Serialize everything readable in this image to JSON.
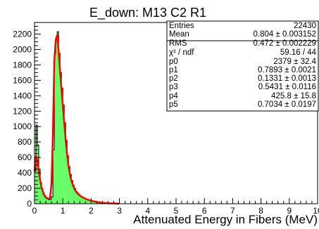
{
  "chart_data": {
    "type": "histogram",
    "title": "E_down: M13 C2 R1",
    "xlabel": "Attenuated Energy in Fibers (MeV)",
    "ylabel": "",
    "xlim": [
      0,
      10
    ],
    "ylim": [
      0,
      2350
    ],
    "x_ticks": [
      0,
      1,
      2,
      3,
      4,
      5,
      6,
      7,
      8,
      9,
      10
    ],
    "y_ticks": [
      0,
      200,
      400,
      600,
      800,
      1000,
      1200,
      1400,
      1600,
      1800,
      2000,
      2200
    ],
    "grid": false,
    "fill_color": "#66ff66",
    "line_color": "#000000",
    "fit_color": "#ff0000",
    "bins": {
      "x": [
        0.0,
        0.05,
        0.1,
        0.15,
        0.2,
        0.25,
        0.3,
        0.35,
        0.4,
        0.45,
        0.5,
        0.55,
        0.6,
        0.65,
        0.7,
        0.75,
        0.8,
        0.85,
        0.9,
        0.95,
        1.0,
        1.05,
        1.1,
        1.15,
        1.2,
        1.25,
        1.3,
        1.35,
        1.4,
        1.45,
        1.5,
        1.55,
        1.6,
        1.65,
        1.7,
        1.75,
        1.8,
        1.85,
        1.9,
        1.95,
        2.0,
        2.05,
        2.1,
        2.15,
        2.2,
        2.25,
        2.3,
        2.35,
        2.4,
        2.45,
        2.5,
        2.55,
        2.6,
        2.65,
        2.7,
        2.75,
        2.8,
        2.85,
        2.9,
        2.95,
        3.0
      ],
      "values": [
        420,
        1020,
        760,
        450,
        270,
        190,
        120,
        90,
        70,
        60,
        50,
        60,
        90,
        700,
        1950,
        2150,
        2230,
        1950,
        1700,
        1500,
        1280,
        1050,
        820,
        620,
        480,
        380,
        300,
        240,
        200,
        160,
        140,
        120,
        100,
        90,
        80,
        70,
        60,
        50,
        45,
        40,
        35,
        30,
        25,
        20,
        18,
        15,
        12,
        10,
        8,
        6,
        5,
        4,
        3,
        2,
        2,
        1,
        1,
        1,
        0,
        0,
        0
      ]
    },
    "fit_curve": {
      "x": [
        0.0,
        0.05,
        0.1,
        0.15,
        0.2,
        0.25,
        0.3,
        0.35,
        0.4,
        0.45,
        0.5,
        0.55,
        0.6,
        0.65,
        0.7,
        0.75,
        0.8,
        0.85,
        0.9,
        0.95,
        1.0,
        1.05,
        1.1,
        1.15,
        1.2,
        1.25,
        1.3,
        1.35,
        1.4,
        1.45,
        1.5,
        1.6,
        1.7,
        1.8,
        1.9,
        2.0,
        2.2,
        2.4,
        2.6,
        2.8,
        3.0
      ],
      "values": [
        420,
        620,
        560,
        420,
        300,
        210,
        150,
        110,
        85,
        70,
        60,
        80,
        260,
        900,
        1850,
        2120,
        2190,
        1980,
        1720,
        1500,
        1270,
        1040,
        830,
        640,
        490,
        380,
        300,
        245,
        200,
        165,
        140,
        105,
        82,
        64,
        50,
        38,
        22,
        12,
        6,
        3,
        1
      ]
    },
    "stats": [
      {
        "key": "Entries",
        "value": "22430"
      },
      {
        "key": "Mean",
        "value": "0.804 ± 0.003152"
      },
      {
        "key": "RMS",
        "value": "0.472 ± 0.002229"
      },
      {
        "key": "χ² / ndf",
        "value": "59.16 / 44"
      },
      {
        "key": "p0",
        "value": "2379 ± 32.4"
      },
      {
        "key": "p1",
        "value": "0.7893 ± 0.0021"
      },
      {
        "key": "p2",
        "value": "0.1331 ± 0.0013"
      },
      {
        "key": "p3",
        "value": "0.5431 ± 0.0116"
      },
      {
        "key": "p4",
        "value": "425.8 ± 15.8"
      },
      {
        "key": "p5",
        "value": "0.7034 ± 0.0197"
      }
    ]
  }
}
